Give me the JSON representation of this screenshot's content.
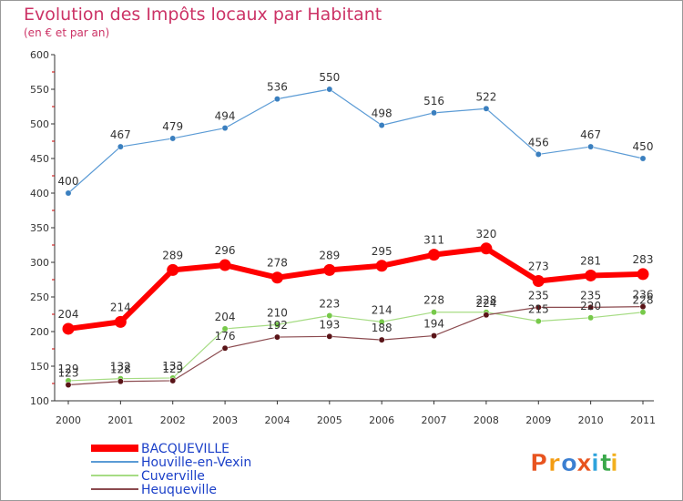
{
  "chart_data": {
    "type": "line",
    "title": "Evolution des Impôts locaux par Habitant",
    "subtitle": "(en € et par an)",
    "xlabel": "",
    "ylabel": "",
    "ylim": [
      100,
      600
    ],
    "yticks": [
      100,
      150,
      200,
      250,
      300,
      350,
      400,
      450,
      500,
      550,
      600
    ],
    "grid": false,
    "legend_position": "bottom-left",
    "categories": [
      "2000",
      "2001",
      "2002",
      "2003",
      "2004",
      "2005",
      "2006",
      "2007",
      "2008",
      "2009",
      "2010",
      "2011"
    ],
    "series": [
      {
        "name": "Houville-en-Vexin",
        "values": [
          400,
          467,
          479,
          494,
          536,
          550,
          498,
          516,
          522,
          456,
          467,
          450
        ],
        "color": "#5b9bd5",
        "marker": "#3a7fbf",
        "width": 1.2,
        "r": 3.2
      },
      {
        "name": "Cuverville",
        "values": [
          129,
          132,
          133,
          204,
          210,
          223,
          214,
          228,
          228,
          215,
          220,
          228
        ],
        "color": "#a6dc84",
        "marker": "#77c94a",
        "width": 1.2,
        "r": 3.2
      },
      {
        "name": "Heuqueville",
        "values": [
          123,
          128,
          129,
          176,
          192,
          193,
          188,
          194,
          224,
          235,
          235,
          236
        ],
        "color": "#8b4a4f",
        "marker": "#5a1418",
        "width": 1.2,
        "r": 3.2
      },
      {
        "name": "BACQUEVILLE",
        "values": [
          204,
          214,
          289,
          296,
          278,
          289,
          295,
          311,
          320,
          273,
          281,
          283
        ],
        "color": "#ff0000",
        "marker": "#ff0000",
        "width": 6,
        "r": 6.5
      }
    ]
  },
  "legend": [
    {
      "name": "BACQUEVILLE",
      "color": "#ff0000"
    },
    {
      "name": "Houville-en-Vexin",
      "color": "#5b9bd5"
    },
    {
      "name": "Cuverville",
      "color": "#a6dc84"
    },
    {
      "name": "Heuqueville",
      "color": "#8b4a4f"
    }
  ],
  "brand": {
    "text": "Proxiti",
    "colors": [
      "#e8541f",
      "#f39c12",
      "#3b7fd1",
      "#e8541f",
      "#2ea3dc",
      "#3aa84a",
      "#f2b01e"
    ]
  },
  "colors": {
    "title": "#cc3366",
    "axis": "#333333",
    "legend_text": "#1a3fc8",
    "value_label": "#333333"
  }
}
